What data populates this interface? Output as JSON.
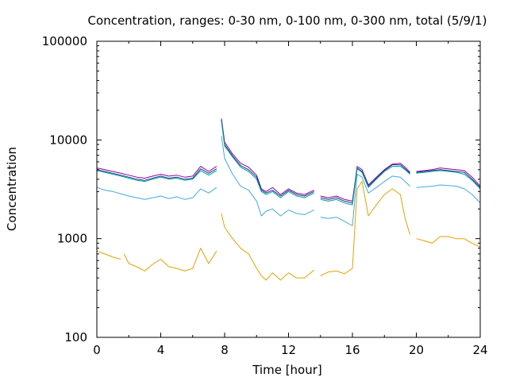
{
  "chart_data": {
    "type": "line",
    "title": "Concentration, ranges: 0-30 nm, 0-100 nm, 0-300 nm, total (5/9/1)",
    "xlabel": "Time [hour]",
    "ylabel": "Concentration",
    "xlim": [
      0,
      24
    ],
    "ylim": [
      100,
      100000
    ],
    "yscale": "log",
    "grid": false,
    "x_ticks": [
      0,
      4,
      8,
      12,
      16,
      20,
      24
    ],
    "x_tick_labels": [
      "0",
      "4",
      "8",
      "12",
      "16",
      "20",
      "24"
    ],
    "y_ticks": [
      100,
      1000,
      10000,
      100000
    ],
    "y_tick_labels": [
      "100",
      "1000",
      "10000",
      "100000"
    ],
    "colors": {
      "total": "#990099",
      "r300": "#0b3d91",
      "r100": "#00a091",
      "r30": "#44aadd",
      "small": "#e6a000"
    },
    "series": [
      {
        "key": "total",
        "points": [
          [
            0,
            5200
          ],
          [
            0.5,
            5000
          ],
          [
            1,
            4800
          ],
          [
            1.5,
            4600
          ],
          [
            2,
            4400
          ],
          [
            2.5,
            4200
          ],
          [
            3,
            4100
          ],
          [
            3.5,
            4300
          ],
          [
            4,
            4500
          ],
          [
            4.5,
            4300
          ],
          [
            5,
            4400
          ],
          [
            5.5,
            4200
          ],
          [
            6,
            4300
          ],
          [
            6.5,
            5400
          ],
          [
            7,
            4800
          ],
          [
            7.5,
            5400
          ],
          [
            7.7,
            null
          ],
          [
            7.8,
            16500
          ],
          [
            8.0,
            9500
          ],
          [
            8.5,
            7200
          ],
          [
            9,
            5800
          ],
          [
            9.5,
            5300
          ],
          [
            10,
            4400
          ],
          [
            10.3,
            3200
          ],
          [
            10.6,
            3000
          ],
          [
            11,
            3300
          ],
          [
            11.5,
            2800
          ],
          [
            12,
            3200
          ],
          [
            12.5,
            2900
          ],
          [
            13,
            2800
          ],
          [
            13.6,
            3100
          ],
          [
            13.8,
            null
          ],
          [
            14,
            2700
          ],
          [
            14.5,
            2600
          ],
          [
            15,
            2700
          ],
          [
            15.5,
            2500
          ],
          [
            16,
            2400
          ],
          [
            16.3,
            5400
          ],
          [
            16.6,
            5000
          ],
          [
            17,
            3500
          ],
          [
            17.5,
            4200
          ],
          [
            18,
            5000
          ],
          [
            18.5,
            5700
          ],
          [
            19,
            5800
          ],
          [
            19.3,
            5300
          ],
          [
            19.6,
            4700
          ],
          [
            19.8,
            null
          ],
          [
            20,
            4800
          ],
          [
            20.5,
            4900
          ],
          [
            21,
            5000
          ],
          [
            21.5,
            5200
          ],
          [
            22,
            5100
          ],
          [
            22.5,
            5000
          ],
          [
            23,
            4900
          ],
          [
            23.5,
            4200
          ],
          [
            24,
            3400
          ]
        ]
      },
      {
        "key": "r300",
        "points": [
          [
            0,
            5000
          ],
          [
            0.5,
            4800
          ],
          [
            1,
            4600
          ],
          [
            1.5,
            4400
          ],
          [
            2,
            4200
          ],
          [
            2.5,
            4000
          ],
          [
            3,
            3900
          ],
          [
            3.5,
            4100
          ],
          [
            4,
            4300
          ],
          [
            4.5,
            4100
          ],
          [
            5,
            4200
          ],
          [
            5.5,
            4000
          ],
          [
            6,
            4100
          ],
          [
            6.5,
            5100
          ],
          [
            7,
            4600
          ],
          [
            7.5,
            5100
          ],
          [
            7.7,
            null
          ],
          [
            7.8,
            16000
          ],
          [
            8.0,
            9000
          ],
          [
            8.5,
            6900
          ],
          [
            9,
            5500
          ],
          [
            9.5,
            5000
          ],
          [
            10,
            4200
          ],
          [
            10.3,
            3100
          ],
          [
            10.6,
            2900
          ],
          [
            11,
            3100
          ],
          [
            11.5,
            2700
          ],
          [
            12,
            3100
          ],
          [
            12.5,
            2800
          ],
          [
            13,
            2700
          ],
          [
            13.6,
            3000
          ],
          [
            13.8,
            null
          ],
          [
            14,
            2600
          ],
          [
            14.5,
            2500
          ],
          [
            15,
            2600
          ],
          [
            15.5,
            2400
          ],
          [
            16,
            2300
          ],
          [
            16.3,
            5200
          ],
          [
            16.6,
            4800
          ],
          [
            17,
            3400
          ],
          [
            17.5,
            4100
          ],
          [
            18,
            4900
          ],
          [
            18.5,
            5600
          ],
          [
            19,
            5600
          ],
          [
            19.3,
            5100
          ],
          [
            19.6,
            4600
          ],
          [
            19.8,
            null
          ],
          [
            20,
            4700
          ],
          [
            20.5,
            4800
          ],
          [
            21,
            4900
          ],
          [
            21.5,
            5000
          ],
          [
            22,
            4900
          ],
          [
            22.5,
            4800
          ],
          [
            23,
            4700
          ],
          [
            23.5,
            4000
          ],
          [
            24,
            3300
          ]
        ]
      },
      {
        "key": "r100",
        "points": [
          [
            0,
            4900
          ],
          [
            0.5,
            4700
          ],
          [
            1,
            4500
          ],
          [
            1.5,
            4300
          ],
          [
            2,
            4100
          ],
          [
            2.5,
            3900
          ],
          [
            3,
            3800
          ],
          [
            3.5,
            4000
          ],
          [
            4,
            4200
          ],
          [
            4.5,
            4000
          ],
          [
            5,
            4100
          ],
          [
            5.5,
            3900
          ],
          [
            6,
            4000
          ],
          [
            6.5,
            4900
          ],
          [
            7,
            4400
          ],
          [
            7.5,
            4900
          ],
          [
            7.7,
            null
          ],
          [
            7.8,
            15500
          ],
          [
            8.0,
            8700
          ],
          [
            8.5,
            6700
          ],
          [
            9,
            5300
          ],
          [
            9.5,
            4800
          ],
          [
            10,
            4000
          ],
          [
            10.3,
            3000
          ],
          [
            10.6,
            2800
          ],
          [
            11,
            3000
          ],
          [
            11.5,
            2600
          ],
          [
            12,
            3000
          ],
          [
            12.5,
            2700
          ],
          [
            13,
            2600
          ],
          [
            13.6,
            2900
          ],
          [
            13.8,
            null
          ],
          [
            14,
            2500
          ],
          [
            14.5,
            2400
          ],
          [
            15,
            2500
          ],
          [
            15.5,
            2300
          ],
          [
            16,
            2200
          ],
          [
            16.3,
            5100
          ],
          [
            16.6,
            4700
          ],
          [
            17,
            3300
          ],
          [
            17.5,
            4000
          ],
          [
            18,
            4800
          ],
          [
            18.5,
            5400
          ],
          [
            19,
            5400
          ],
          [
            19.3,
            5000
          ],
          [
            19.6,
            4500
          ],
          [
            19.8,
            null
          ],
          [
            20,
            4600
          ],
          [
            20.5,
            4700
          ],
          [
            21,
            4800
          ],
          [
            21.5,
            4900
          ],
          [
            22,
            4800
          ],
          [
            22.5,
            4700
          ],
          [
            23,
            4500
          ],
          [
            23.5,
            3900
          ],
          [
            24,
            3200
          ]
        ]
      },
      {
        "key": "r30",
        "points": [
          [
            0,
            3300
          ],
          [
            0.5,
            3100
          ],
          [
            1,
            3000
          ],
          [
            1.5,
            2850
          ],
          [
            2,
            2700
          ],
          [
            2.5,
            2600
          ],
          [
            3,
            2500
          ],
          [
            3.5,
            2600
          ],
          [
            4,
            2700
          ],
          [
            4.5,
            2550
          ],
          [
            5,
            2650
          ],
          [
            5.5,
            2500
          ],
          [
            6,
            2600
          ],
          [
            6.5,
            3200
          ],
          [
            7,
            2900
          ],
          [
            7.5,
            3300
          ],
          [
            7.7,
            null
          ],
          [
            7.8,
            11000
          ],
          [
            8.0,
            6500
          ],
          [
            8.5,
            4500
          ],
          [
            9,
            3400
          ],
          [
            9.5,
            3100
          ],
          [
            10,
            2400
          ],
          [
            10.3,
            1700
          ],
          [
            10.6,
            1900
          ],
          [
            11,
            2000
          ],
          [
            11.5,
            1700
          ],
          [
            12,
            1950
          ],
          [
            12.5,
            1800
          ],
          [
            13,
            1750
          ],
          [
            13.6,
            1950
          ],
          [
            13.8,
            null
          ],
          [
            14,
            1650
          ],
          [
            14.5,
            1600
          ],
          [
            15,
            1650
          ],
          [
            15.5,
            1500
          ],
          [
            16,
            1350
          ],
          [
            16.3,
            4500
          ],
          [
            16.6,
            4200
          ],
          [
            17,
            2900
          ],
          [
            17.5,
            3300
          ],
          [
            18,
            3800
          ],
          [
            18.5,
            4300
          ],
          [
            19,
            4200
          ],
          [
            19.3,
            3800
          ],
          [
            19.6,
            3400
          ],
          [
            19.8,
            null
          ],
          [
            20,
            3300
          ],
          [
            20.5,
            3350
          ],
          [
            21,
            3400
          ],
          [
            21.5,
            3500
          ],
          [
            22,
            3450
          ],
          [
            22.5,
            3400
          ],
          [
            23,
            3200
          ],
          [
            23.5,
            2800
          ],
          [
            24,
            2300
          ]
        ]
      },
      {
        "key": "small",
        "points": [
          [
            0,
            750
          ],
          [
            0.5,
            700
          ],
          [
            1,
            650
          ],
          [
            1.5,
            620
          ],
          [
            1.6,
            null
          ],
          [
            1.7,
            700
          ],
          [
            2,
            560
          ],
          [
            2.5,
            520
          ],
          [
            3,
            470
          ],
          [
            3.5,
            550
          ],
          [
            4,
            620
          ],
          [
            4.5,
            520
          ],
          [
            5,
            500
          ],
          [
            5.5,
            470
          ],
          [
            6,
            500
          ],
          [
            6.5,
            800
          ],
          [
            7,
            560
          ],
          [
            7.5,
            750
          ],
          [
            7.7,
            null
          ],
          [
            7.8,
            1800
          ],
          [
            8.0,
            1300
          ],
          [
            8.5,
            1000
          ],
          [
            9,
            800
          ],
          [
            9.5,
            700
          ],
          [
            10,
            500
          ],
          [
            10.3,
            420
          ],
          [
            10.6,
            380
          ],
          [
            11,
            450
          ],
          [
            11.5,
            380
          ],
          [
            12,
            450
          ],
          [
            12.5,
            400
          ],
          [
            13,
            400
          ],
          [
            13.6,
            480
          ],
          [
            13.8,
            null
          ],
          [
            14,
            420
          ],
          [
            14.5,
            460
          ],
          [
            15,
            470
          ],
          [
            15.5,
            440
          ],
          [
            16,
            500
          ],
          [
            16.3,
            3200
          ],
          [
            16.6,
            3800
          ],
          [
            17,
            1700
          ],
          [
            17.5,
            2200
          ],
          [
            18,
            2800
          ],
          [
            18.5,
            3200
          ],
          [
            19,
            2800
          ],
          [
            19.3,
            1600
          ],
          [
            19.6,
            1100
          ],
          [
            19.8,
            null
          ],
          [
            20,
            1000
          ],
          [
            20.5,
            950
          ],
          [
            21,
            900
          ],
          [
            21.5,
            1050
          ],
          [
            22,
            1050
          ],
          [
            22.5,
            1000
          ],
          [
            23,
            1000
          ],
          [
            23.5,
            900
          ],
          [
            24,
            820
          ]
        ]
      }
    ]
  }
}
